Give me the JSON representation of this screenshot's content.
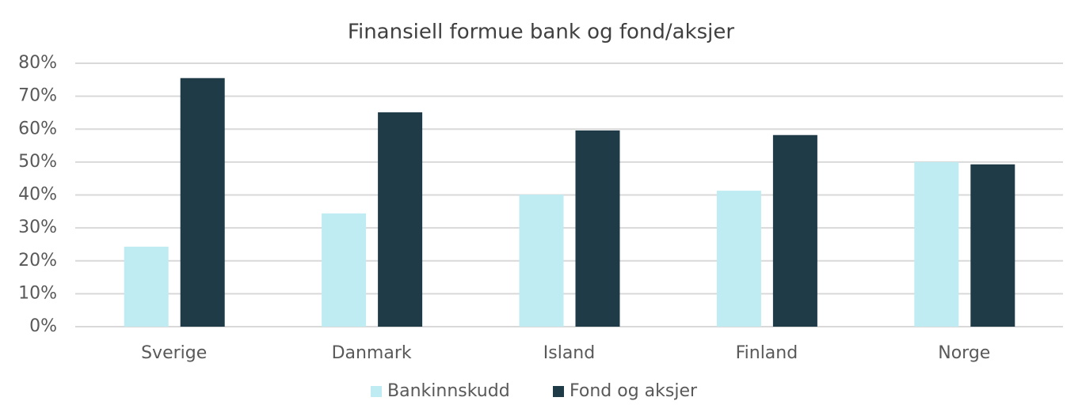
{
  "chart_data": {
    "type": "bar",
    "title": "Finansiell formue bank og fond/aksjer",
    "categories": [
      "Sverige",
      "Danmark",
      "Island",
      "Finland",
      "Norge"
    ],
    "series": [
      {
        "name": "Bankinnskudd",
        "color": "#bfecf2",
        "values": [
          24.3,
          34.4,
          40.1,
          41.3,
          50.0
        ]
      },
      {
        "name": "Fond og aksjer",
        "color": "#1e3b47",
        "values": [
          75.5,
          65.1,
          59.6,
          58.2,
          49.3
        ]
      }
    ],
    "ylim": [
      0,
      80
    ],
    "yticks": [
      {
        "value": 0,
        "label": "0%"
      },
      {
        "value": 10,
        "label": "10%"
      },
      {
        "value": 20,
        "label": "20%"
      },
      {
        "value": 30,
        "label": "30%"
      },
      {
        "value": 40,
        "label": "40%"
      },
      {
        "value": 50,
        "label": "50%"
      },
      {
        "value": 60,
        "label": "60%"
      },
      {
        "value": 70,
        "label": "70%"
      },
      {
        "value": 80,
        "label": "80%"
      }
    ],
    "grid": true,
    "legend": "bottom"
  }
}
